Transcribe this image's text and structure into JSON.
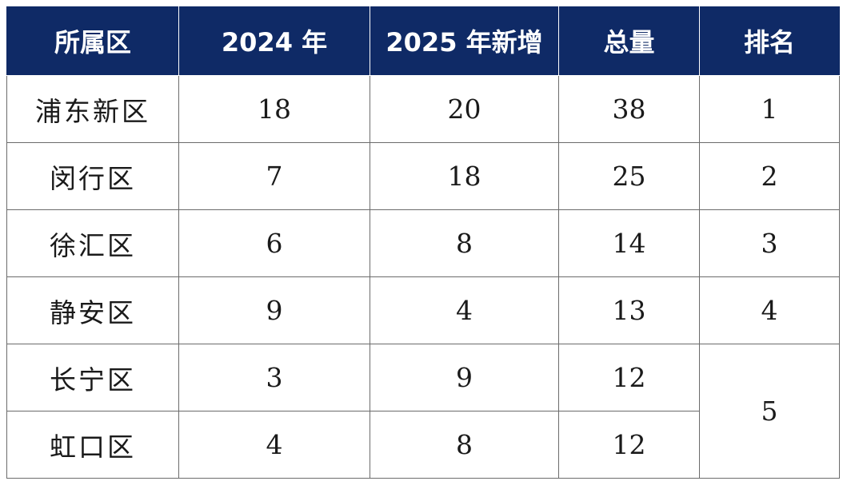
{
  "table": {
    "headers": [
      "所属区",
      "2024 年",
      "2025 年新增",
      "总量",
      "排名"
    ],
    "rows": [
      {
        "district": "浦东新区",
        "y2024": "18",
        "y2025_new": "20",
        "total": "38",
        "rank": "1"
      },
      {
        "district": "闵行区",
        "y2024": "7",
        "y2025_new": "18",
        "total": "25",
        "rank": "2"
      },
      {
        "district": "徐汇区",
        "y2024": "6",
        "y2025_new": "8",
        "total": "14",
        "rank": "3"
      },
      {
        "district": "静安区",
        "y2024": "9",
        "y2025_new": "4",
        "total": "13",
        "rank": "4"
      },
      {
        "district": "长宁区",
        "y2024": "3",
        "y2025_new": "9",
        "total": "12",
        "rank": "5"
      },
      {
        "district": "虹口区",
        "y2024": "4",
        "y2025_new": "8",
        "total": "12",
        "rank": ""
      }
    ]
  },
  "colors": {
    "header_background": "#0f2a66",
    "header_text": "#ffffff",
    "grid_line": "#6b6b6b"
  }
}
